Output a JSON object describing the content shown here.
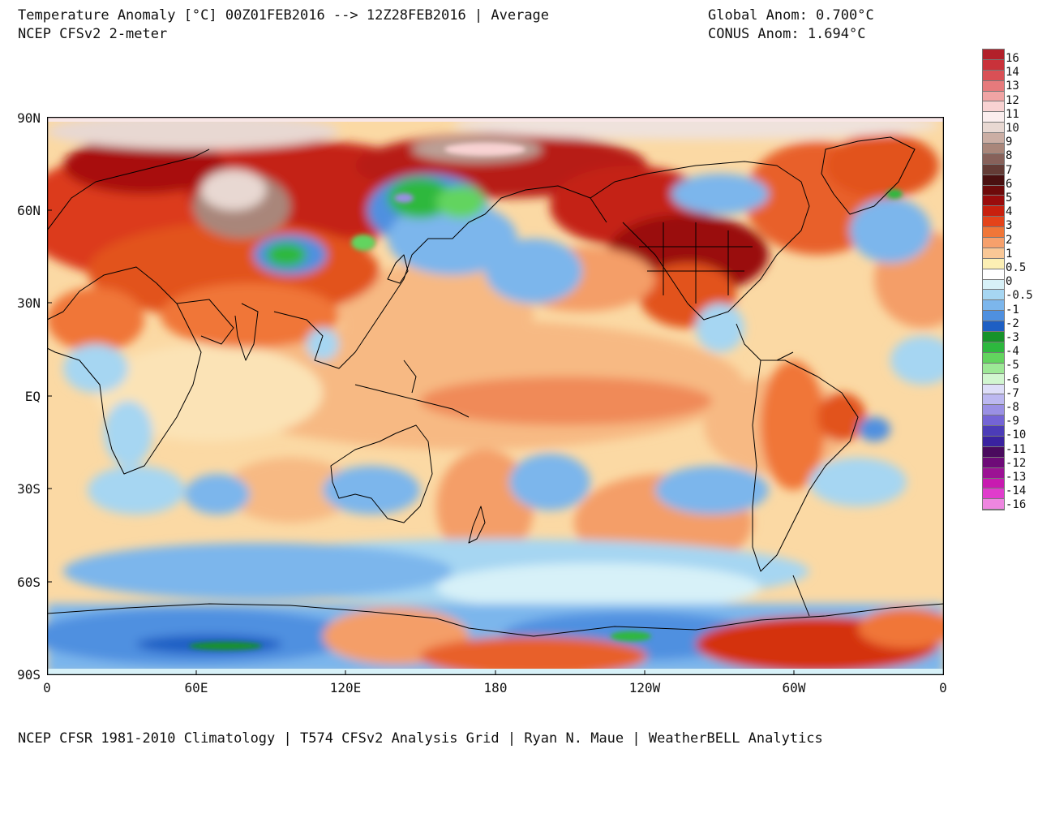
{
  "header": {
    "title_line1": "Temperature Anomaly [°C] 00Z01FEB2016 --> 12Z28FEB2016 | Average",
    "title_line2": "NCEP CFSv2 2-meter",
    "global_anom": "Global Anom: 0.700°C",
    "conus_anom": "CONUS Anom: 1.694°C"
  },
  "axes": {
    "lat_labels": [
      "90N",
      "60N",
      "30N",
      "EQ",
      "30S",
      "60S",
      "90S"
    ],
    "lon_labels": [
      "0",
      "60E",
      "120E",
      "180",
      "120W",
      "60W",
      "0"
    ]
  },
  "legend": {
    "labels": [
      "16",
      "14",
      "13",
      "12",
      "11",
      "10",
      "9",
      "8",
      "7",
      "6",
      "5",
      "4",
      "3",
      "2",
      "1",
      "0.5",
      "0",
      "-0.5",
      "-1",
      "-2",
      "-3",
      "-4",
      "-5",
      "-6",
      "-7",
      "-8",
      "-9",
      "-10",
      "-11",
      "-12",
      "-13",
      "-14",
      "-16"
    ],
    "colors": [
      "#b2202a",
      "#c9323a",
      "#d95055",
      "#e67a7c",
      "#f0a4a4",
      "#f8d2d2",
      "#fbeeee",
      "#e8d8d2",
      "#cbaea4",
      "#a9867a",
      "#87615a",
      "#643c36",
      "#4a1010",
      "#6e0a0a",
      "#9a0c0c",
      "#c8200e",
      "#e4431a",
      "#f07638",
      "#f6a06c",
      "#f9c796",
      "#fcefb4",
      "#ffffff",
      "#d7f1f8",
      "#a6d6f2",
      "#7cb6ec",
      "#4f90e0",
      "#1e5fc4",
      "#17922a",
      "#2db83e",
      "#62d45e",
      "#9de896",
      "#d2f6d0",
      "#dedef8",
      "#bcb8f0",
      "#9a90e4",
      "#7464d6",
      "#4c3cb8",
      "#3a22a0",
      "#4a0a5e",
      "#6e0a78",
      "#9c1294",
      "#c81ab0",
      "#e03ccc",
      "#ee86e0"
    ]
  },
  "footer": {
    "credit": "NCEP CFSR 1981-2010 Climatology | T574 CFSv2 Analysis Grid | Ryan N. Maue | WeatherBELL Analytics"
  }
}
